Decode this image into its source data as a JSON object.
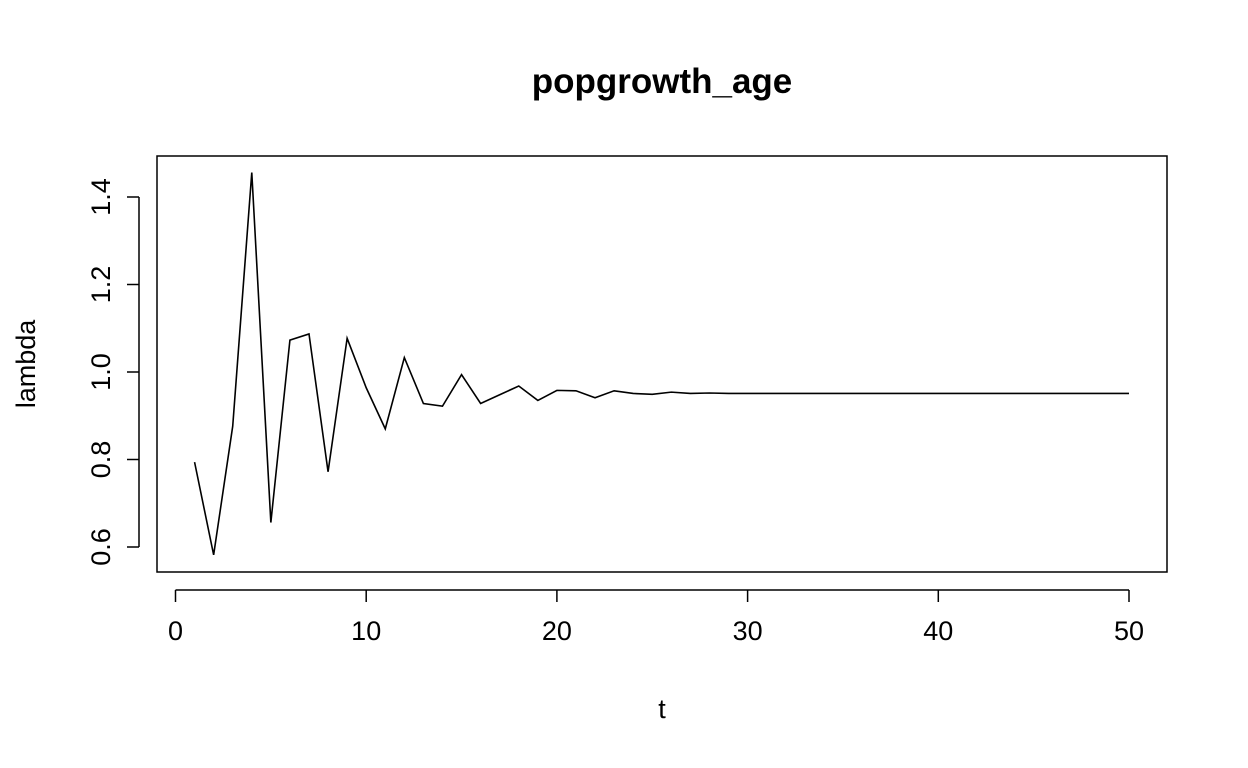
{
  "chart_data": {
    "type": "line",
    "title": "popgrowth_age",
    "xlabel": "t",
    "ylabel": "lambda",
    "xlim": [
      0,
      52
    ],
    "ylim": [
      0.55,
      1.47
    ],
    "x_ticks": [
      0,
      10,
      20,
      30,
      40,
      50
    ],
    "y_ticks": [
      0.6,
      0.8,
      1.0,
      1.2,
      1.4
    ],
    "x_tick_labels": [
      "0",
      "10",
      "20",
      "30",
      "40",
      "50"
    ],
    "y_tick_labels": [
      "0.6",
      "0.8",
      "1.0",
      "1.2",
      "1.4"
    ],
    "grid": false,
    "line_color": "#000000",
    "series": [
      {
        "x": [
          1,
          2,
          3,
          4,
          5,
          6,
          7,
          8,
          9,
          10,
          11,
          12,
          13,
          14,
          15,
          16,
          17,
          18,
          19,
          20,
          21,
          22,
          23,
          24,
          25,
          26,
          27,
          28,
          29,
          30,
          31,
          32,
          33,
          34,
          35,
          36,
          37,
          38,
          39,
          40,
          41,
          42,
          43,
          44,
          45,
          46,
          47,
          48,
          49,
          50
        ],
        "values": [
          0.794,
          0.582,
          0.876,
          1.456,
          0.656,
          1.073,
          1.087,
          0.772,
          1.077,
          0.964,
          0.87,
          1.033,
          0.928,
          0.922,
          0.994,
          0.928,
          0.948,
          0.968,
          0.935,
          0.958,
          0.957,
          0.941,
          0.957,
          0.951,
          0.949,
          0.954,
          0.951,
          0.952,
          0.951,
          0.951,
          0.951,
          0.951,
          0.951,
          0.951,
          0.951,
          0.951,
          0.951,
          0.951,
          0.951,
          0.951,
          0.951,
          0.951,
          0.951,
          0.951,
          0.951,
          0.951,
          0.951,
          0.951,
          0.951,
          0.951
        ]
      }
    ]
  }
}
